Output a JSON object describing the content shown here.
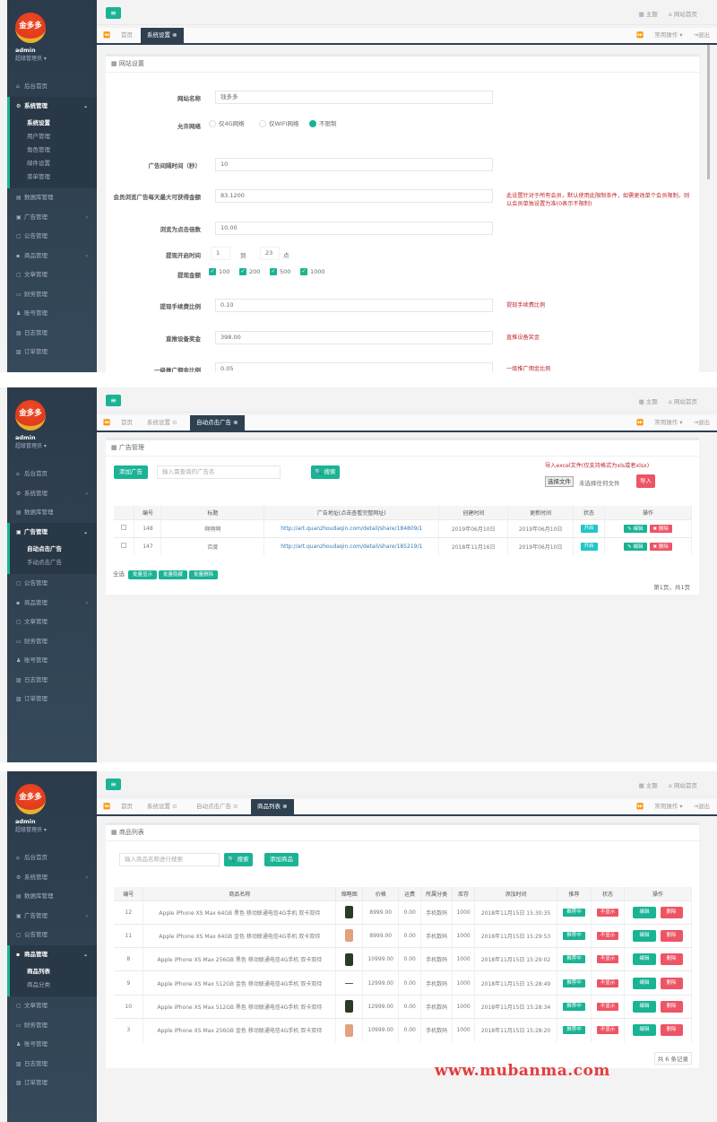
{
  "common": {
    "menu_button": "≡",
    "user": {
      "name": "admin",
      "role": "超级管理员 ▾"
    },
    "logo_text": "金多多",
    "top_links": {
      "theme": "▦ 主题",
      "home": "⌂ 网站首页"
    },
    "tab_actions": {
      "collapse": "⏩",
      "ops": "常用操作 ▾",
      "logout": "⇥退出"
    },
    "tab_back": "⏪",
    "sidebar": [
      {
        "icon": "⌂",
        "label": "后台首页"
      },
      {
        "icon": "⚙",
        "label": "系统管理",
        "subs": [
          "系统设置",
          "用户管理",
          "角色管理",
          "邮件设置",
          "菜单管理"
        ]
      },
      {
        "icon": "▤",
        "label": "数据库管理"
      },
      {
        "icon": "▣",
        "label": "广告管理",
        "subs": [
          "自动点击广告",
          "手动点击广告"
        ]
      },
      {
        "icon": "▢",
        "label": "公告管理"
      },
      {
        "icon": "▪",
        "label": "商品管理",
        "subs": [
          "商品列表",
          "商品分类"
        ]
      },
      {
        "icon": "▢",
        "label": "文章管理"
      },
      {
        "icon": "▭",
        "label": "财务管理"
      },
      {
        "icon": "♟",
        "label": "账号管理"
      },
      {
        "icon": "▨",
        "label": "日志管理"
      },
      {
        "icon": "▨",
        "label": "订单管理"
      }
    ]
  },
  "panels": [
    {
      "active_menu": 1,
      "active_sub": 0,
      "tabs": [
        "首页",
        "系统设置 ⊗"
      ],
      "active_tab": 1,
      "title": "▦ 网站设置",
      "form": {
        "site_name": {
          "label": "网站名称",
          "value": "钱多多"
        },
        "network": {
          "label": "允许网络",
          "options": [
            "仅4G网络",
            "仅WIFI网络",
            "不限制"
          ],
          "selected": 2
        },
        "ad_interval": {
          "label": "广告间隔时间（秒）",
          "value": "10"
        },
        "daily_max": {
          "label": "会员浏览广告每天最大可获得金额",
          "value": "83.1200",
          "note": "此设置针对于所有会员，默认使用此限制条件，如需更改单个会员限制，则以会员单独设置为准(0表示不限制)"
        },
        "click_multiplier": {
          "label": "浏览为点击倍数",
          "value": "10.00"
        },
        "withdraw_time": {
          "label": "提现开启时间",
          "from": "1",
          "to_label": "到",
          "to": "23",
          "unit": "点"
        },
        "withdraw_amount": {
          "label": "提现金额",
          "options": [
            "100",
            "200",
            "500",
            "1000"
          ],
          "checked": [
            true,
            true,
            true,
            true
          ]
        },
        "fee_ratio": {
          "label": "提现手续费比例",
          "value": "0.10",
          "note": "提现手续费比例"
        },
        "direct_bonus": {
          "label": "直推设备奖金",
          "value": "398.00",
          "note": "直推设备奖金"
        },
        "level1_ratio": {
          "label": "一级推广佣金比例",
          "value": "0.05",
          "note": "一级推广佣金比例"
        }
      }
    },
    {
      "active_menu": 3,
      "active_sub": 0,
      "tabs": [
        "首页",
        "系统设置 ⊙",
        "自动点击广告 ⊗"
      ],
      "active_tab": 2,
      "title": "▦ 广告管理",
      "add_button": "添加广告",
      "search_placeholder": "输入需查询的广告名",
      "search_button": "🔍 搜索",
      "import": {
        "hint": "导入excel文件(仅支持格式为xls或者xlsx)",
        "choose": "选择文件",
        "no_file": "未选择任何文件",
        "button": "导入"
      },
      "columns": [
        "",
        "编号",
        "标题",
        "广告地址(点击查看完整网址)",
        "创建时间",
        "更新时间",
        "状态",
        "操作"
      ],
      "rows": [
        {
          "id": "148",
          "title": "啊啊啊",
          "url": "http://art.quanzhoudaqin.com/detail/share/184809/1",
          "created": "2019年06月10日",
          "updated": "2019年06月10日",
          "status": "开启"
        },
        {
          "id": "147",
          "title": "百度",
          "url": "http://art.quanzhoudaqin.com/detail/share/185219/1",
          "created": "2018年11月16日",
          "updated": "2019年06月10日",
          "status": "开启"
        }
      ],
      "row_actions": {
        "edit": "✎ 编辑",
        "delete": "✖ 删除"
      },
      "select_all": "全选",
      "bulk": [
        "批量显示",
        "批量隐藏",
        "批量删除"
      ],
      "pagination": "第1页，共1页"
    },
    {
      "active_menu": 5,
      "active_sub": 0,
      "tabs": [
        "首页",
        "系统设置 ⊙",
        "自动点击广告 ⊙",
        "商品列表 ⊗"
      ],
      "active_tab": 3,
      "title": "▦ 商品列表",
      "search_placeholder": "输入商品名称进行搜索",
      "search_button": "🔍 搜索",
      "add_button": "添加商品",
      "columns": [
        "编号",
        "商品名称",
        "缩略图",
        "价格",
        "运费",
        "所属分类",
        "库存",
        "添加时间",
        "推荐",
        "状态",
        "操作"
      ],
      "rows": [
        {
          "id": "12",
          "name": "Apple iPhone XS Max 64GB 黑色 移动联通电信4G手机 双卡双待",
          "thumb": "#2d3a2a",
          "price": "8999.00",
          "shipping": "0.00",
          "category": "手机数码",
          "stock": "1000",
          "added": "2018年11月15日 15:30:35",
          "recommend": "推荐中",
          "status": "不显示"
        },
        {
          "id": "11",
          "name": "Apple iPhone XS Max 64GB 金色 移动联通电信4G手机 双卡双待",
          "thumb": "#e2a27d",
          "price": "8999.00",
          "shipping": "0.00",
          "category": "手机数码",
          "stock": "1000",
          "added": "2018年11月15日 15:29:53",
          "recommend": "推荐中",
          "status": "不显示"
        },
        {
          "id": "8",
          "name": "Apple iPhone XS Max 256GB 黑色 移动联通电信4G手机 双卡双待",
          "thumb": "#2d3a2a",
          "price": "10999.00",
          "shipping": "0.00",
          "category": "手机数码",
          "stock": "1000",
          "added": "2018年11月15日 15:29:02",
          "recommend": "推荐中",
          "status": "不显示"
        },
        {
          "id": "9",
          "name": "Apple iPhone XS Max 512GB 金色 移动联通电信4G手机 双卡双待",
          "thumb": "",
          "price": "12999.00",
          "shipping": "0.00",
          "category": "手机数码",
          "stock": "1000",
          "added": "2018年11月15日 15:28:49",
          "recommend": "推荐中",
          "status": "不显示"
        },
        {
          "id": "10",
          "name": "Apple iPhone XS Max 512GB 黑色 移动联通电信4G手机 双卡双待",
          "thumb": "#2d3a2a",
          "price": "12999.00",
          "shipping": "0.00",
          "category": "手机数码",
          "stock": "1000",
          "added": "2018年11月15日 15:28:34",
          "recommend": "推荐中",
          "status": "不显示"
        },
        {
          "id": "3",
          "name": "Apple iPhone XS Max 256GB 金色 移动联通电信4G手机 双卡双待",
          "thumb": "#e2a27d",
          "price": "10999.00",
          "shipping": "0.00",
          "category": "手机数码",
          "stock": "1000",
          "added": "2018年11月15日 15:28:20",
          "recommend": "推荐中",
          "status": "不显示"
        }
      ],
      "row_actions": {
        "edit": "编辑",
        "delete": "删除"
      },
      "footer": "共 6 条记录"
    }
  ],
  "watermark": "www.mubanma.com",
  "colors": {
    "primary": "#1ab394",
    "danger": "#ed5565",
    "sidebar": "#2f4050",
    "note": "#c0262b"
  }
}
